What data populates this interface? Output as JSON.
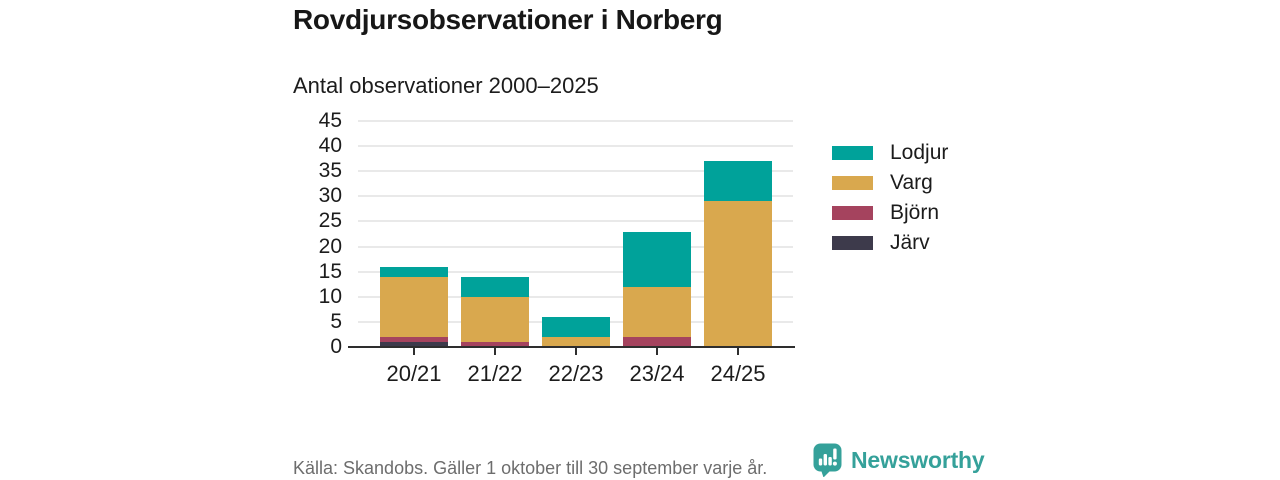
{
  "header": {
    "title": "Rovdjursobservationer i Norberg"
  },
  "chart_data": {
    "type": "bar",
    "stacked": true,
    "title": "Antal observationer 2000–2025",
    "categories": [
      "20/21",
      "21/22",
      "22/23",
      "23/24",
      "24/25"
    ],
    "series": [
      {
        "name": "Lodjur",
        "color": "#00a29a",
        "values": [
          2,
          4,
          4,
          11,
          8
        ]
      },
      {
        "name": "Varg",
        "color": "#d9a84e",
        "values": [
          12,
          9,
          2,
          10,
          29
        ]
      },
      {
        "name": "Björn",
        "color": "#a5435e",
        "values": [
          1,
          1,
          0,
          2,
          0
        ]
      },
      {
        "name": "Järv",
        "color": "#3d3a4b",
        "values": [
          1,
          0,
          0,
          0,
          0
        ]
      }
    ],
    "stack_order_bottom_to_top": [
      "Järv",
      "Björn",
      "Varg",
      "Lodjur"
    ],
    "totals": [
      16,
      14,
      6,
      23,
      37
    ],
    "xlabel": "",
    "ylabel": "",
    "ylim": [
      0,
      45
    ],
    "ytick_step": 5,
    "grid": "horizontal",
    "legend_position": "right"
  },
  "footer": {
    "source": "Källa: Skandobs. Gäller 1 oktober till 30 september varje år.",
    "brand": "Newsworthy",
    "brand_color": "#35a19a"
  }
}
